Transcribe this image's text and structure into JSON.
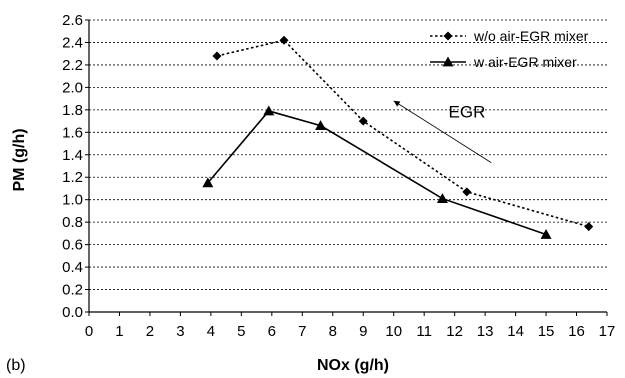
{
  "chart_data": {
    "type": "line",
    "panel_label": "(b)",
    "xlabel": "NOx (g/h)",
    "ylabel": "PM (g/h)",
    "xlim": [
      0,
      17
    ],
    "ylim": [
      0,
      2.6
    ],
    "x_ticks": [
      "0",
      "1",
      "2",
      "3",
      "4",
      "5",
      "6",
      "7",
      "8",
      "9",
      "10",
      "11",
      "12",
      "13",
      "14",
      "15",
      "16",
      "17"
    ],
    "y_ticks": [
      "0.0",
      "0.2",
      "0.4",
      "0.6",
      "0.8",
      "1.0",
      "1.2",
      "1.4",
      "1.6",
      "1.8",
      "2.0",
      "2.2",
      "2.4",
      "2.6"
    ],
    "grid": "horizontal dotted",
    "legend_position": "top-right",
    "series": [
      {
        "name": "w/o air-EGR mixer",
        "marker": "diamond",
        "line_style": "dotted",
        "color": "#000000",
        "points": [
          [
            4.2,
            2.28
          ],
          [
            6.4,
            2.42
          ],
          [
            9.0,
            1.7
          ],
          [
            12.4,
            1.07
          ],
          [
            16.4,
            0.76
          ]
        ]
      },
      {
        "name": "w air-EGR mixer",
        "marker": "triangle",
        "line_style": "solid",
        "color": "#000000",
        "points": [
          [
            3.9,
            1.15
          ],
          [
            5.9,
            1.79
          ],
          [
            7.6,
            1.66
          ],
          [
            11.6,
            1.01
          ],
          [
            15.0,
            0.69
          ]
        ]
      }
    ],
    "annotation": {
      "text": "EGR",
      "arrow_from": [
        13.2,
        1.33
      ],
      "arrow_to": [
        10.0,
        1.88
      ],
      "text_at": [
        11.8,
        1.73
      ]
    }
  }
}
